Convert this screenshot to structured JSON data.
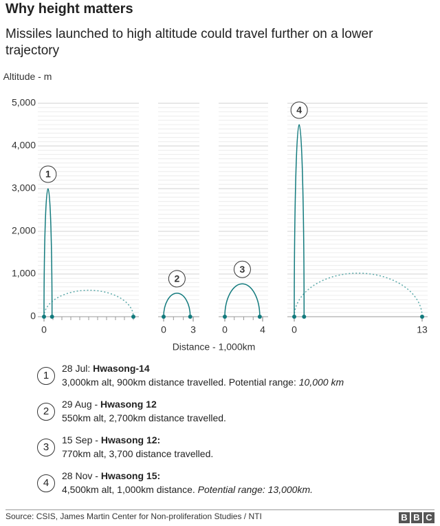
{
  "title": "Why height matters",
  "subtitle": "Missiles launched to high altitude could travel further on a lower trajectory",
  "chart_data": {
    "type": "trajectory",
    "y_label": "Altitude - m",
    "x_label": "Distance - 1,000km",
    "ylim": [
      0,
      5000
    ],
    "yticks": [
      0,
      {
        "value": 1000,
        "label": "1,000"
      },
      {
        "value": 2000,
        "label": "2,000"
      },
      {
        "value": 3000,
        "label": "3,000"
      },
      {
        "value": 4000,
        "label": "4,000"
      },
      {
        "value": 5000,
        "label": "5,000"
      }
    ],
    "grid": true,
    "color": "#127a7d",
    "panels": [
      {
        "marker": "1",
        "xlim": [
          0,
          10
        ],
        "xticks": [
          0
        ],
        "minor_ticks": true,
        "distance": 0.9,
        "altitude": 3000,
        "potential_distance": 10,
        "potential_altitude": 620
      },
      {
        "marker": "2",
        "xlim": [
          0,
          3
        ],
        "xticks": [
          0,
          3
        ],
        "minor_ticks": true,
        "distance": 2.7,
        "altitude": 550
      },
      {
        "marker": "3",
        "xlim": [
          0,
          4
        ],
        "xticks": [
          0,
          4
        ],
        "minor_ticks": true,
        "distance": 3.7,
        "altitude": 770
      },
      {
        "marker": "4",
        "xlim": [
          0,
          13
        ],
        "xticks": [
          0,
          13
        ],
        "minor_ticks": false,
        "distance": 1.0,
        "altitude": 4500,
        "potential_distance": 13,
        "potential_altitude": 1020
      }
    ]
  },
  "notes": [
    {
      "marker": "1",
      "date": "28 Jul:",
      "name": "Hwasong-14",
      "detail": "3,000km alt, 900km distance travelled. Potential range:",
      "detail_italic": "10,000 km"
    },
    {
      "marker": "2",
      "date": "29 Aug -",
      "name": "Hwasong 12",
      "detail": "550km alt, 2,700km distance travelled."
    },
    {
      "marker": "3",
      "date": "15 Sep -",
      "name": "Hwasong 12:",
      "detail": "770km alt, 3,700 distance travelled."
    },
    {
      "marker": "4",
      "date": "28 Nov -",
      "name": "Hwasong 15:",
      "detail": "4,500km alt, 1,000km distance.",
      "detail_italic": "Potential range: 13,000km."
    }
  ],
  "source": "Source: CSIS, James Martin Center for Non-proliferation Studies / NTI",
  "logo": [
    "B",
    "B",
    "C"
  ]
}
